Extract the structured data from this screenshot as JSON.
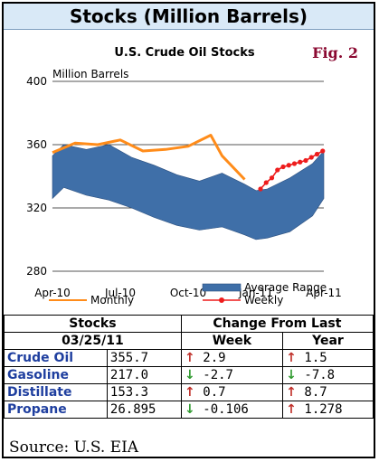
{
  "header": {
    "title": "Stocks (Million Barrels)"
  },
  "figure": {
    "label": "Fig. 2"
  },
  "chart_data": {
    "type": "line",
    "title": "U.S. Crude Oil Stocks",
    "ylabel": "Million Barrels",
    "ylim": [
      280,
      400
    ],
    "yticks": [
      280,
      320,
      360,
      400
    ],
    "xticks": [
      {
        "label": "Apr-10",
        "t": 0
      },
      {
        "label": "Jul-10",
        "t": 3
      },
      {
        "label": "Oct-10",
        "t": 6
      },
      {
        "label": "Jan-11",
        "t": 9
      },
      {
        "label": "Apr-11",
        "t": 12
      }
    ],
    "grid": true,
    "range": {
      "name": "Average Range",
      "color": "#3f6fa8",
      "t": [
        0,
        0.5,
        1.5,
        2.5,
        3.5,
        4.5,
        5.5,
        6.5,
        7.5,
        8.5,
        9.0,
        9.5,
        10.5,
        11.5,
        12
      ],
      "upper": [
        353,
        360,
        357,
        360,
        352,
        347,
        341,
        337,
        342,
        335,
        331,
        332,
        339,
        348,
        356
      ],
      "lower": [
        326,
        333,
        328,
        325,
        320,
        314,
        309,
        306,
        308,
        303,
        300,
        301,
        305,
        315,
        326
      ]
    },
    "series": [
      {
        "name": "Monthly",
        "color": "#ff8c1a",
        "t": [
          0,
          1,
          2,
          3,
          4,
          5,
          6,
          7,
          7.5,
          8.5
        ],
        "values": [
          355,
          361,
          360,
          363,
          356,
          357,
          359,
          366,
          353,
          338
        ]
      },
      {
        "name": "Weekly",
        "color": "#ee1c1c",
        "t": [
          9.2,
          9.45,
          9.7,
          9.95,
          10.2,
          10.45,
          10.7,
          10.95,
          11.2,
          11.45,
          11.7,
          11.95
        ],
        "values": [
          332,
          336,
          339,
          344,
          346,
          347,
          348,
          349,
          350,
          352,
          354,
          356
        ]
      }
    ],
    "legend": [
      {
        "name": "Average Range",
        "kind": "area"
      },
      {
        "name": "Monthly",
        "kind": "line"
      },
      {
        "name": "Weekly",
        "kind": "line-marker"
      }
    ]
  },
  "table": {
    "col_stocks": "Stocks",
    "col_change": "Change From Last",
    "date": "03/25/11",
    "col_week": "Week",
    "col_year": "Year",
    "rows": [
      {
        "name": "Crude Oil",
        "value": "355.7",
        "week": "2.9",
        "week_dir": "up",
        "year": "1.5",
        "year_dir": "up"
      },
      {
        "name": "Gasoline",
        "value": "217.0",
        "week": "-2.7",
        "week_dir": "down",
        "year": "-7.8",
        "year_dir": "down"
      },
      {
        "name": "Distillate",
        "value": "153.3",
        "week": "0.7",
        "week_dir": "up",
        "year": "8.7",
        "year_dir": "up"
      },
      {
        "name": "Propane",
        "value": "26.895",
        "week": "-0.106",
        "week_dir": "down",
        "year": "1.278",
        "year_dir": "up"
      }
    ]
  },
  "source": "Source: U.S. EIA"
}
